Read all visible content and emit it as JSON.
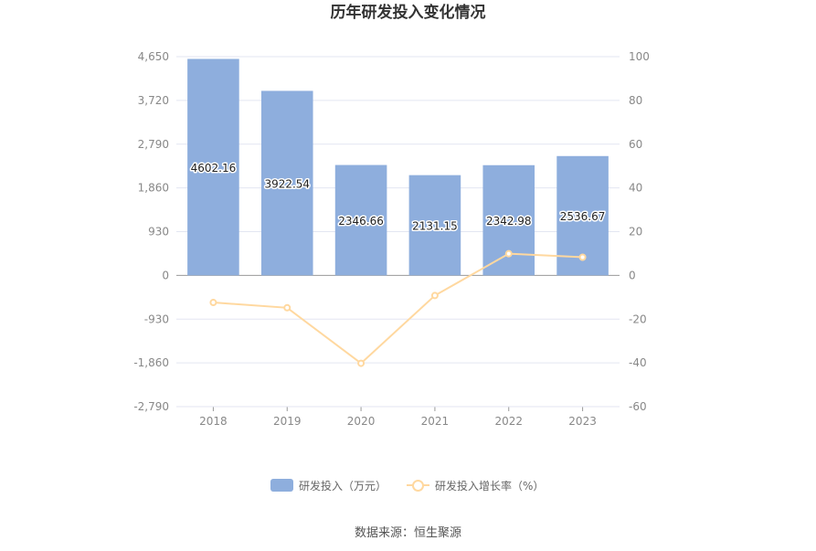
{
  "chart_data": {
    "title": "历年研发投入变化情况",
    "categories": [
      "2018",
      "2019",
      "2020",
      "2021",
      "2022",
      "2023"
    ],
    "series": [
      {
        "name": "研发投入（万元）",
        "type": "bar",
        "axis": "left",
        "values": [
          4602.16,
          3922.54,
          2346.66,
          2131.15,
          2342.98,
          2536.67
        ],
        "labels": [
          "4602.16",
          "3922.54",
          "2346.66",
          "2131.15",
          "2342.98",
          "2536.67"
        ],
        "color": "#8eaedd"
      },
      {
        "name": "研发投入增长率（%）",
        "type": "line",
        "axis": "right",
        "values": [
          -12.4,
          -14.8,
          -40.2,
          -9.2,
          9.9,
          8.3
        ],
        "color": "#ffd89f"
      }
    ],
    "left_axis": {
      "min": -2790,
      "max": 4650,
      "ticks": [
        -2790,
        -1860,
        -930,
        0,
        930,
        1860,
        2790,
        3720,
        4650
      ],
      "tick_labels": [
        "-2,790",
        "-1,860",
        "-930",
        "0",
        "930",
        "1,860",
        "2,790",
        "3,720",
        "4,650"
      ]
    },
    "right_axis": {
      "min": -60,
      "max": 100,
      "ticks": [
        -60,
        -40,
        -20,
        0,
        20,
        40,
        60,
        80,
        100
      ],
      "tick_labels": [
        "-60",
        "-40",
        "-20",
        "0",
        "20",
        "40",
        "60",
        "80",
        "100"
      ]
    },
    "grid": true,
    "legend_position": "bottom"
  },
  "legend": {
    "bar_label": "研发投入（万元）",
    "line_label": "研发投入增长率（%）"
  },
  "source": "数据来源：恒生聚源"
}
